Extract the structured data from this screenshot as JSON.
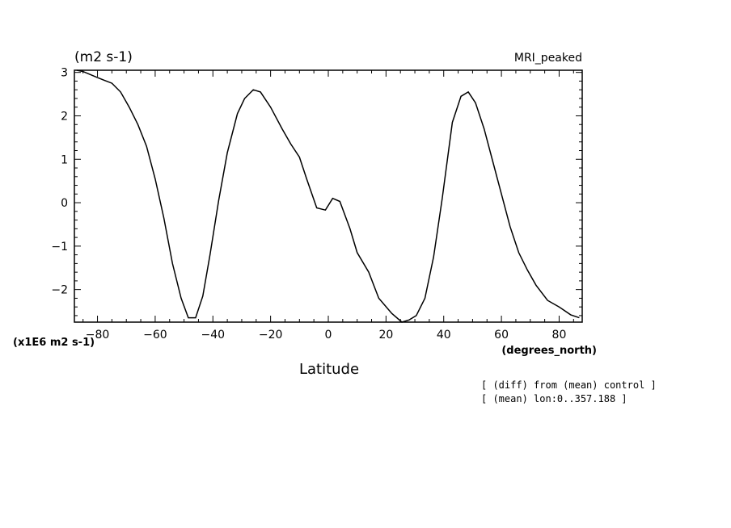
{
  "chart_data": {
    "type": "line",
    "title": "MRI_peaked",
    "ylabel": "(m2 s-1)",
    "ylabel_scale": "(x1E6 m2 s-1)",
    "xlabel": "Latitude",
    "xunit": "(degrees_north)",
    "xlim": [
      -88,
      88
    ],
    "ylim": [
      -2.75,
      3.05
    ],
    "xticks": [
      -80,
      -60,
      -40,
      -20,
      0,
      20,
      40,
      60,
      80
    ],
    "xtick_labels": [
      "-80",
      "-60",
      "-40",
      "-20",
      "0",
      "20",
      "40",
      "60",
      "80"
    ],
    "yticks": [
      -2,
      -1,
      0,
      1,
      2,
      3
    ],
    "ytick_labels": [
      "-2",
      "-1",
      "0",
      "1",
      "2",
      "3"
    ],
    "grid": false,
    "series": [
      {
        "x": [
          -87.2,
          -85,
          -80,
          -75,
          -72,
          -69,
          -66,
          -63,
          -60,
          -57,
          -54,
          -51,
          -48.5,
          -46,
          -43.5,
          -41,
          -38,
          -35,
          -31.5,
          -29,
          -26,
          -23.5,
          -20,
          -16,
          -13,
          -10,
          -7.5,
          -4,
          -1,
          1.5,
          4,
          7.5,
          10,
          14,
          17.5,
          22,
          25.5,
          28,
          30.5,
          33.5,
          36.5,
          39.5,
          43,
          46,
          48.5,
          51,
          54,
          57,
          60,
          63,
          66,
          69,
          72,
          76,
          80,
          84,
          87
        ],
        "y": [
          3.05,
          3.02,
          2.88,
          2.75,
          2.55,
          2.2,
          1.8,
          1.3,
          0.55,
          -0.35,
          -1.4,
          -2.2,
          -2.65,
          -2.65,
          -2.15,
          -1.2,
          0.05,
          1.15,
          2.05,
          2.4,
          2.6,
          2.55,
          2.2,
          1.7,
          1.35,
          1.05,
          0.55,
          -0.12,
          -0.17,
          0.1,
          0.03,
          -0.6,
          -1.15,
          -1.6,
          -2.2,
          -2.55,
          -2.75,
          -2.7,
          -2.6,
          -2.2,
          -1.25,
          0.1,
          1.85,
          2.45,
          2.55,
          2.3,
          1.7,
          0.95,
          0.2,
          -0.55,
          -1.15,
          -1.55,
          -1.9,
          -2.25,
          -2.4,
          -2.58,
          -2.65
        ]
      }
    ]
  },
  "notes": [
    "[ (diff) from (mean) control ]",
    "[ (mean) lon:0..357.188 ]"
  ]
}
